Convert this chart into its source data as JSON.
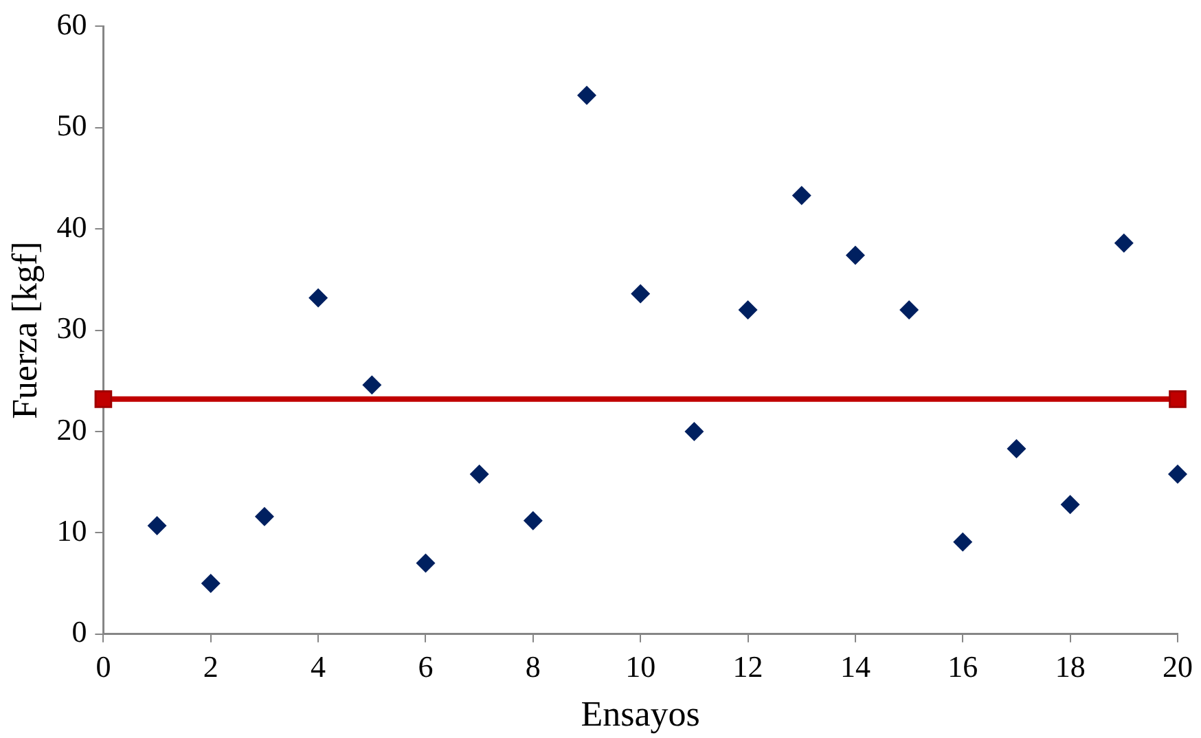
{
  "chart_data": {
    "type": "scatter",
    "xlabel": "Ensayos",
    "ylabel": "Fuerza [kgf]",
    "xlim": [
      0,
      20
    ],
    "xticks": [
      0,
      2,
      4,
      6,
      8,
      10,
      12,
      14,
      16,
      18,
      20
    ],
    "ylim": [
      0,
      60
    ],
    "yticks": [
      0,
      10,
      20,
      30,
      40,
      50,
      60
    ],
    "grid": false,
    "legend": false,
    "series": [
      {
        "type": "scatter",
        "color": "#002060",
        "marker": "diamond",
        "x": [
          1,
          2,
          3,
          4,
          5,
          6,
          7,
          8,
          9,
          10,
          11,
          12,
          13,
          14,
          15,
          16,
          17,
          18,
          19,
          20
        ],
        "values": [
          10.7,
          5.0,
          11.6,
          33.2,
          24.6,
          7.0,
          15.8,
          11.2,
          53.2,
          33.6,
          20.0,
          32.0,
          43.3,
          37.4,
          32.0,
          9.1,
          18.3,
          12.8,
          38.6,
          15.8
        ]
      },
      {
        "type": "line",
        "color": "#c00000",
        "marker": "square",
        "line_style": "solid",
        "x": [
          0,
          20
        ],
        "values": [
          23.2,
          23.2
        ]
      }
    ]
  }
}
